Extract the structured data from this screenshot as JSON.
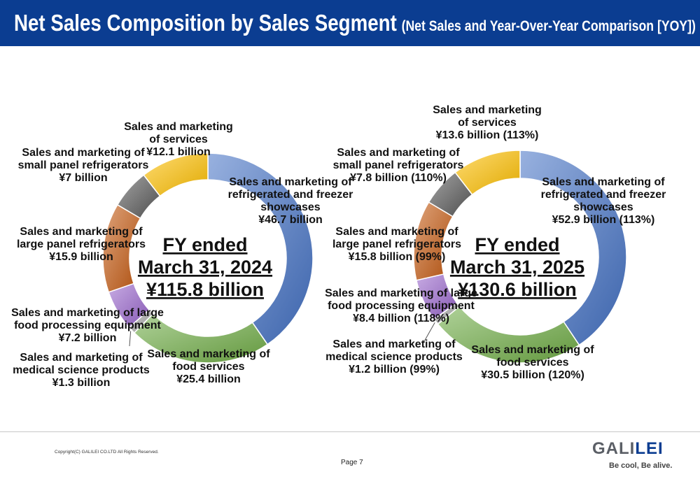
{
  "header": {
    "title": "Net Sales Composition by Sales Segment",
    "subtitle": "(Net Sales and Year-Over-Year Comparison [YOY])",
    "background": "#0b3d91"
  },
  "chart_data": [
    {
      "type": "pie",
      "donut": true,
      "center_text": [
        "FY ended",
        "March 31, 2024",
        "¥115.8 billion"
      ],
      "unit": "¥ billion",
      "total": 115.8,
      "slices": [
        {
          "label": [
            "Sales and marketing of",
            "refrigerated and freezer",
            "showcases",
            "¥46.7 billion"
          ],
          "value": 46.7,
          "color": "#4472c4"
        },
        {
          "label": [
            "Sales and marketing of",
            "food services",
            "¥25.4 billion"
          ],
          "value": 25.4,
          "color": "#70ad47"
        },
        {
          "label": [
            "Sales and marketing of",
            "medical science products",
            "¥1.3 billion"
          ],
          "value": 1.3,
          "color": "#a5a5a5"
        },
        {
          "label": [
            "Sales and marketing of large",
            "food processing equipment",
            "¥7.2 billion"
          ],
          "value": 7.2,
          "color": "#9966cc"
        },
        {
          "label": [
            "Sales and marketing of",
            "large panel refrigerators",
            "¥15.9 billion"
          ],
          "value": 15.9,
          "color": "#c55a11"
        },
        {
          "label": [
            "Sales and marketing of",
            "small panel refrigerators",
            "¥7 billion"
          ],
          "value": 7.0,
          "color": "#595959"
        },
        {
          "label": [
            "Sales and marketing",
            "of services",
            "¥12.1 billion"
          ],
          "value": 12.1,
          "color": "#ffc000"
        }
      ]
    },
    {
      "type": "pie",
      "donut": true,
      "center_text": [
        "FY ended",
        "March 31, 2025",
        "¥130.6 billion"
      ],
      "unit": "¥ billion",
      "total": 130.6,
      "slices": [
        {
          "label": [
            "Sales and marketing of",
            "refrigerated and freezer",
            "showcases",
            "¥52.9 billion (113%)"
          ],
          "value": 52.9,
          "yoy": "113%",
          "color": "#4472c4"
        },
        {
          "label": [
            "Sales and marketing of",
            "food services",
            "¥30.5 billion (120%)"
          ],
          "value": 30.5,
          "yoy": "120%",
          "color": "#70ad47"
        },
        {
          "label": [
            "Sales and marketing of",
            "medical science products",
            "¥1.2 billion (99%)"
          ],
          "value": 1.2,
          "yoy": "99%",
          "color": "#a5a5a5"
        },
        {
          "label": [
            "Sales and marketing of large",
            "food processing equipment",
            "¥8.4 billion (118%)"
          ],
          "value": 8.4,
          "yoy": "118%",
          "color": "#9966cc"
        },
        {
          "label": [
            "Sales and marketing of",
            "large panel refrigerators",
            "¥15.8 billion (99%)"
          ],
          "value": 15.8,
          "yoy": "99%",
          "color": "#c55a11"
        },
        {
          "label": [
            "Sales and marketing of",
            "small panel refrigerators",
            "¥7.8 billion (110%)"
          ],
          "value": 7.8,
          "yoy": "110%",
          "color": "#595959"
        },
        {
          "label": [
            "Sales and marketing",
            "of services",
            "¥13.6 billion (113%)"
          ],
          "value": 13.6,
          "yoy": "113%",
          "color": "#ffc000"
        }
      ]
    }
  ],
  "footer": {
    "copyright": "Copyright(C) GALILEI CO.LTD All Rights Reserved.",
    "page": "Page 7",
    "logo_gali": "GALI",
    "logo_lei": "LEI",
    "tagline": "Be cool, Be alive."
  }
}
